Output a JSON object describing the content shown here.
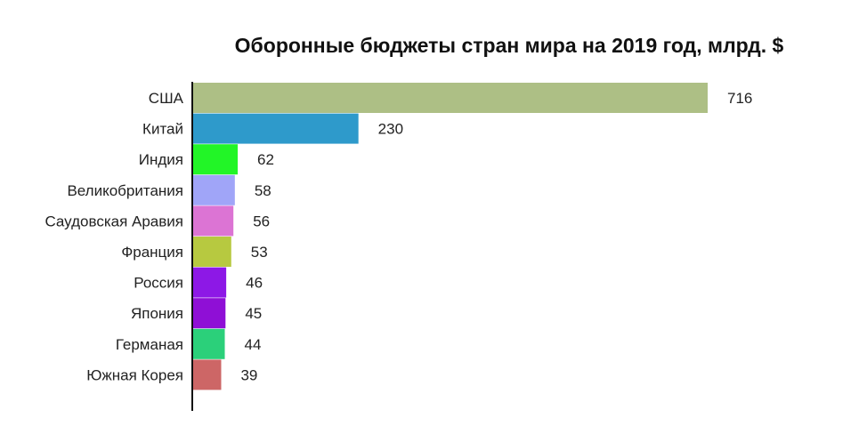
{
  "chart_data": {
    "type": "bar",
    "orientation": "horizontal",
    "title": "Оборонные бюджеты стран мира на 2019 год, млрд. $",
    "xlabel": "",
    "ylabel": "",
    "categories": [
      "США",
      "Китай",
      "Индия",
      "Великобритания",
      "Саудовская Аравия",
      "Франция",
      "Россия",
      "Япония",
      "Германая",
      "Южная Корея"
    ],
    "values": [
      716,
      230,
      62,
      58,
      56,
      53,
      46,
      45,
      44,
      39
    ],
    "colors": [
      "#adbf85",
      "#2e9acb",
      "#22f527",
      "#a0a5f8",
      "#dc74d4",
      "#b7c940",
      "#8d18e6",
      "#8f0fd6",
      "#2bd07a",
      "#cd6666"
    ],
    "xlim": [
      0,
      716
    ],
    "grid": false,
    "legend": "none"
  }
}
